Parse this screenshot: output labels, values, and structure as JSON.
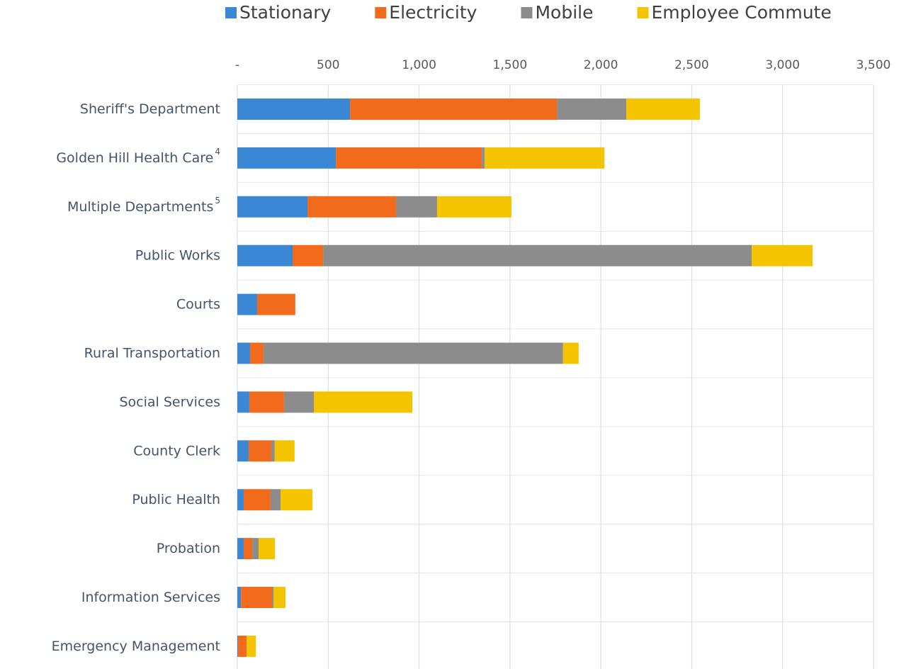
{
  "chart_data": {
    "type": "stacked_barh",
    "categories": [
      "Sheriff's Department",
      "Golden Hill Health Care",
      "Multiple Departments",
      "Public Works",
      "Courts",
      "Rural Transportation",
      "Social Services",
      "County Clerk",
      "Public Health",
      "Probation",
      "Information Services",
      "Emergency Management"
    ],
    "category_footnotes": [
      null,
      "4",
      "5",
      null,
      null,
      null,
      null,
      null,
      null,
      null,
      null,
      null
    ],
    "series": [
      {
        "name": "Stationary",
        "color": "#3a87d6",
        "values": [
          620,
          542,
          386,
          304,
          109,
          70,
          66,
          62,
          35,
          35,
          20,
          4
        ]
      },
      {
        "name": "Electricity",
        "color": "#f26b1d",
        "values": [
          1138,
          803,
          487,
          168,
          210,
          74,
          191,
          125,
          148,
          47,
          171,
          47
        ]
      },
      {
        "name": "Mobile",
        "color": "#8c8c8c",
        "values": [
          382,
          16,
          226,
          2358,
          0,
          1648,
          164,
          19,
          55,
          35,
          8,
          0
        ]
      },
      {
        "name": "Employee Commute",
        "color": "#f5c400",
        "values": [
          405,
          659,
          409,
          335,
          0,
          86,
          542,
          109,
          175,
          90,
          66,
          51
        ]
      }
    ],
    "xlim": [
      0,
      3500
    ],
    "xticks": [
      {
        "value": 0,
        "label": "-"
      },
      500,
      {
        "value": 1000,
        "label": "1,000"
      },
      {
        "value": 1500,
        "label": "1,500"
      },
      {
        "value": 2000,
        "label": "2,000"
      },
      {
        "value": 2500,
        "label": "2,500"
      },
      {
        "value": 3000,
        "label": "3,000"
      },
      {
        "value": 3500,
        "label": "3,500"
      }
    ],
    "grid": true,
    "legend": "top"
  }
}
